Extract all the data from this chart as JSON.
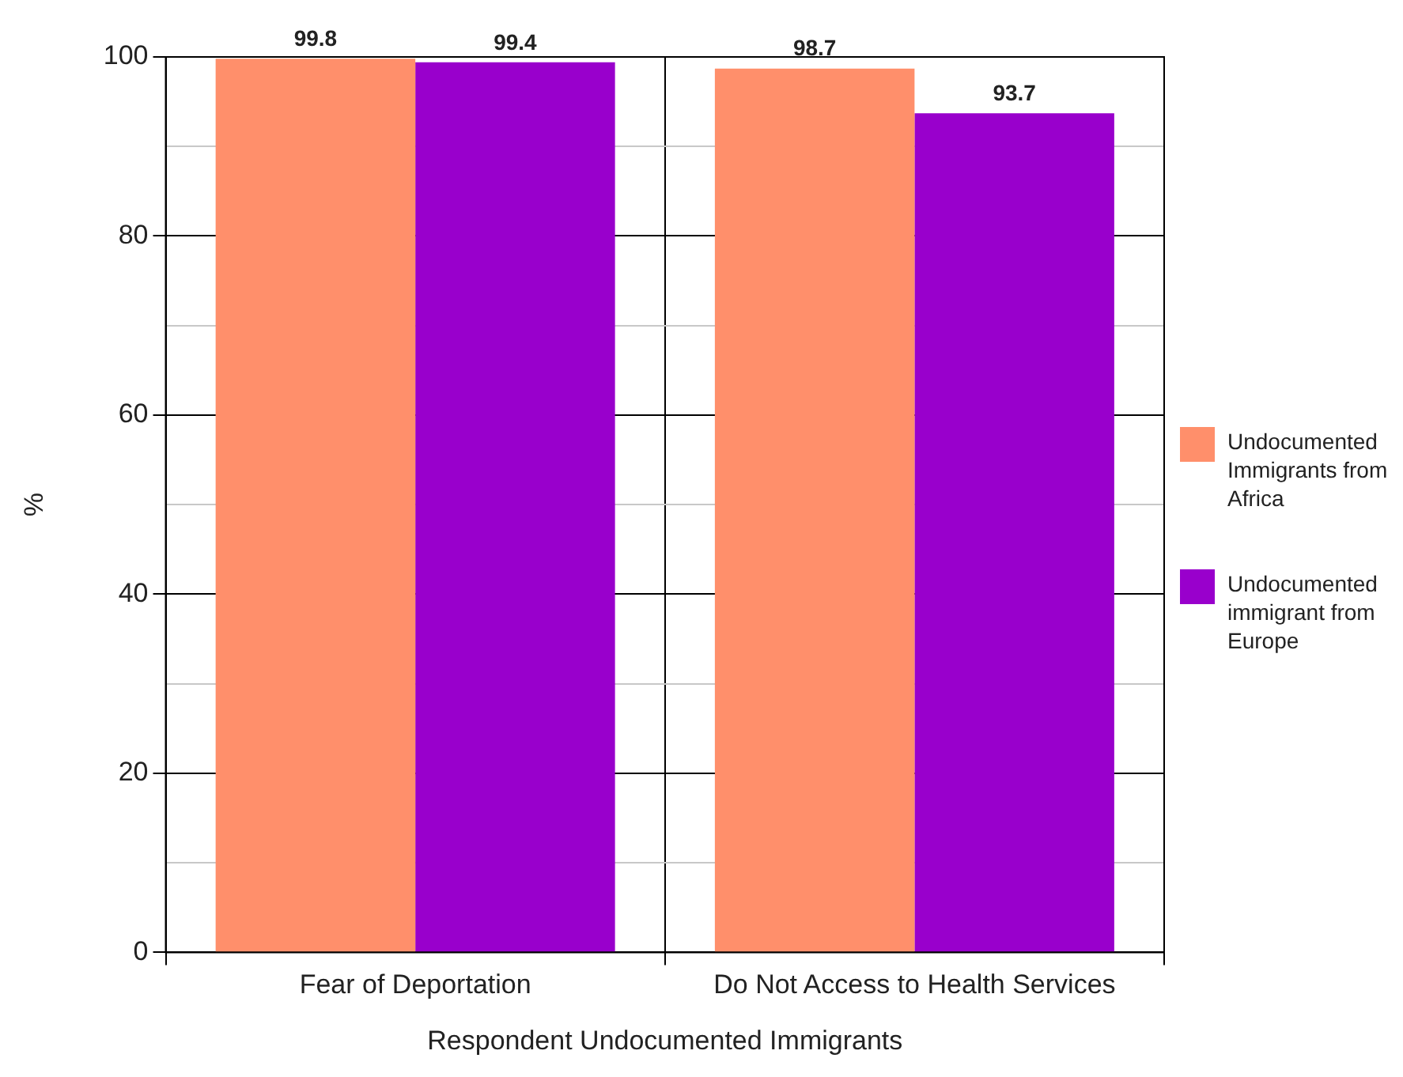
{
  "chart_data": {
    "type": "bar",
    "xlabel": "Respondent Undocumented Immigrants",
    "ylabel": "%",
    "categories": [
      "Fear of Deportation",
      "Do Not Access to Health Services"
    ],
    "series": [
      {
        "name": "Undocumented Immigrants from Africa",
        "color": "#ff8f6b",
        "values": [
          99.8,
          98.7
        ]
      },
      {
        "name": "Undocumented immigrant from Europe",
        "color": "#9900cc",
        "values": [
          99.4,
          93.7
        ]
      }
    ],
    "ylim": [
      0,
      100
    ],
    "yticks": [
      0,
      {
        "value": 10,
        "label": null
      },
      20,
      {
        "value": 30,
        "label": null
      },
      40,
      {
        "value": 50,
        "label": null
      },
      60,
      {
        "value": 70,
        "label": null
      },
      80,
      {
        "value": 90,
        "label": null
      },
      100
    ],
    "grid": true,
    "legend": "right",
    "data_labels": true
  }
}
